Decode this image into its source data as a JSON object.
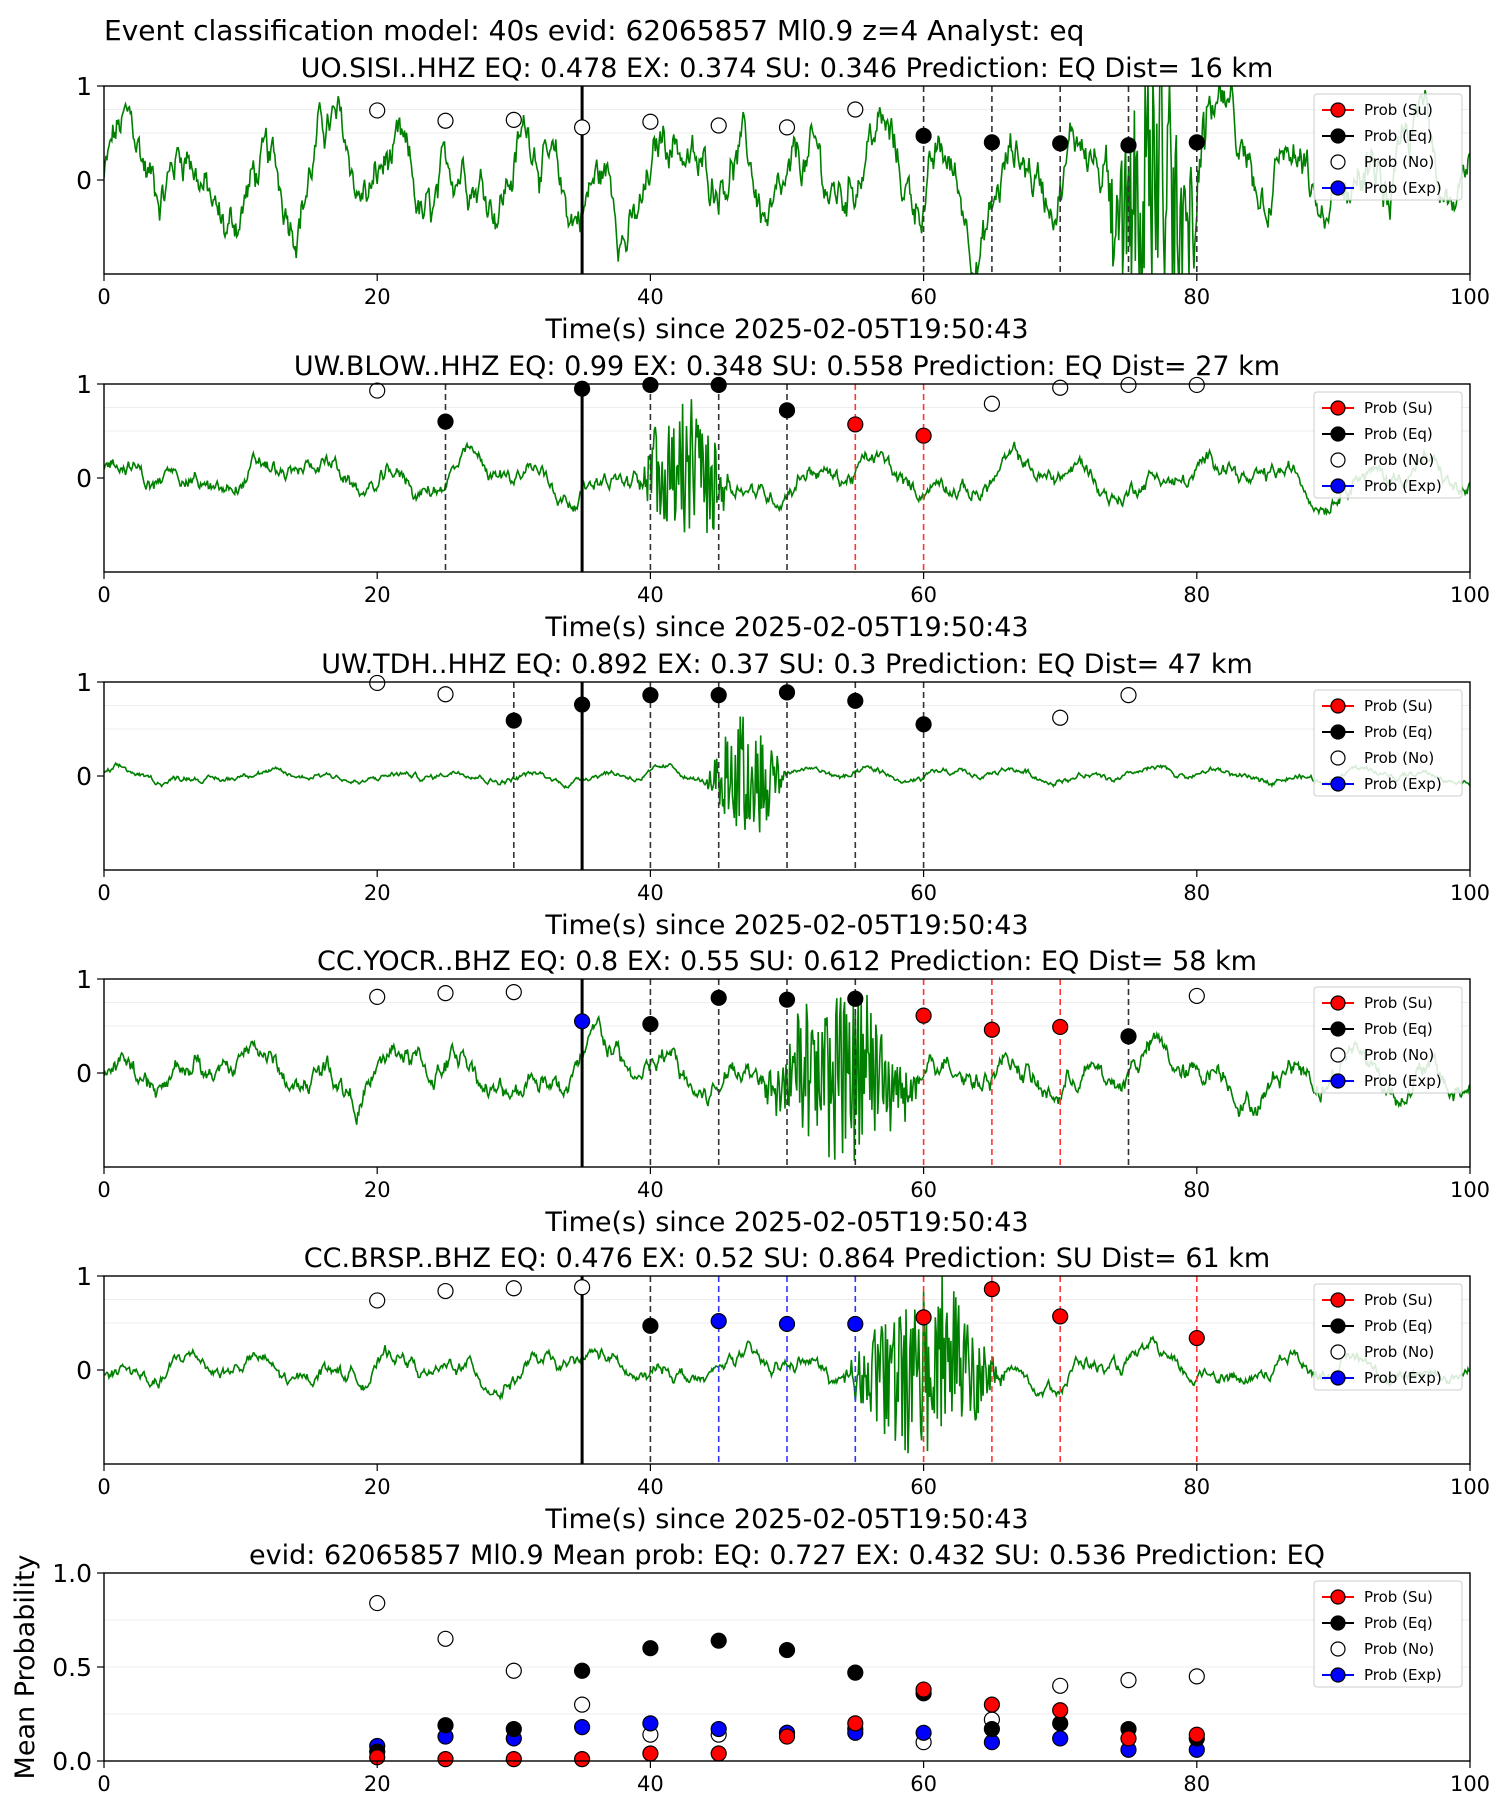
{
  "figure": {
    "suptitle": "Event classification model: 40s evid: 62065857 Ml0.9 z=4 Analyst: eq"
  },
  "legend_labels": [
    "Prob (Su)",
    "Prob (Eq)",
    "Prob (No)",
    "Prob (Exp)"
  ],
  "colors": {
    "su": "#ff0000",
    "eq": "#000000",
    "no": "#ffffff",
    "exp": "#0000ff",
    "trace": "#008000"
  },
  "chart_data": [
    {
      "type": "line",
      "title": "UO.SISI..HHZ   EQ: 0.478  EX: 0.374  SU: 0.346   Prediction: EQ    Dist= 16 km",
      "xlabel": "Time(s) since 2025-02-05T19:50:43",
      "xlim": [
        0,
        100
      ],
      "ylim": [
        -1,
        1
      ],
      "xticks": [
        "0",
        "20",
        "40",
        "60",
        "80",
        "100"
      ],
      "yticks": [
        "0",
        "1"
      ],
      "amp": 0.62,
      "burst": [
        73,
        81,
        1.6
      ],
      "origin_line": 35,
      "vlines": [
        {
          "x": 60,
          "c": "k"
        },
        {
          "x": 65,
          "c": "k"
        },
        {
          "x": 70,
          "c": "k"
        },
        {
          "x": 75,
          "c": "k"
        },
        {
          "x": 80,
          "c": "k"
        }
      ],
      "markers": [
        {
          "x": 20,
          "y": 0.74,
          "c": "no"
        },
        {
          "x": 25,
          "y": 0.63,
          "c": "no"
        },
        {
          "x": 30,
          "y": 0.64,
          "c": "no"
        },
        {
          "x": 35,
          "y": 0.56,
          "c": "no"
        },
        {
          "x": 40,
          "y": 0.62,
          "c": "no"
        },
        {
          "x": 45,
          "y": 0.58,
          "c": "no"
        },
        {
          "x": 50,
          "y": 0.56,
          "c": "no"
        },
        {
          "x": 55,
          "y": 0.75,
          "c": "no"
        },
        {
          "x": 60,
          "y": 0.47,
          "c": "eq"
        },
        {
          "x": 65,
          "y": 0.4,
          "c": "eq"
        },
        {
          "x": 70,
          "y": 0.39,
          "c": "eq"
        },
        {
          "x": 75,
          "y": 0.37,
          "c": "eq"
        },
        {
          "x": 80,
          "y": 0.4,
          "c": "eq"
        }
      ]
    },
    {
      "type": "line",
      "title": "UW.BLOW..HHZ   EQ: 0.99  EX: 0.348  SU: 0.558   Prediction: EQ    Dist= 27 km",
      "xlabel": "Time(s) since 2025-02-05T19:50:43",
      "xlim": [
        0,
        100
      ],
      "ylim": [
        -1,
        1
      ],
      "xticks": [
        "0",
        "20",
        "40",
        "60",
        "80",
        "100"
      ],
      "yticks": [
        "0",
        "1"
      ],
      "amp": 0.22,
      "burst": [
        39,
        46,
        0.9
      ],
      "origin_line": 35,
      "vlines": [
        {
          "x": 25,
          "c": "k"
        },
        {
          "x": 40,
          "c": "k"
        },
        {
          "x": 45,
          "c": "k"
        },
        {
          "x": 50,
          "c": "k"
        },
        {
          "x": 55,
          "c": "r"
        },
        {
          "x": 60,
          "c": "r"
        }
      ],
      "markers": [
        {
          "x": 20,
          "y": 0.93,
          "c": "no"
        },
        {
          "x": 25,
          "y": 0.6,
          "c": "eq"
        },
        {
          "x": 35,
          "y": 0.95,
          "c": "eq"
        },
        {
          "x": 40,
          "y": 0.99,
          "c": "eq"
        },
        {
          "x": 45,
          "y": 0.99,
          "c": "eq"
        },
        {
          "x": 50,
          "y": 0.72,
          "c": "eq"
        },
        {
          "x": 55,
          "y": 0.57,
          "c": "su"
        },
        {
          "x": 60,
          "y": 0.45,
          "c": "su"
        },
        {
          "x": 65,
          "y": 0.79,
          "c": "no"
        },
        {
          "x": 70,
          "y": 0.96,
          "c": "no"
        },
        {
          "x": 75,
          "y": 0.99,
          "c": "no"
        },
        {
          "x": 80,
          "y": 0.99,
          "c": "no"
        }
      ]
    },
    {
      "type": "line",
      "title": "UW.TDH..HHZ   EQ: 0.892  EX: 0.37   SU: 0.3   Prediction: EQ    Dist= 47 km",
      "xlabel": "Time(s) since 2025-02-05T19:50:43",
      "xlim": [
        0,
        100
      ],
      "ylim": [
        -1,
        1
      ],
      "xticks": [
        "0",
        "20",
        "40",
        "60",
        "80",
        "100"
      ],
      "yticks": [
        "0",
        "1"
      ],
      "amp": 0.08,
      "burst": [
        44,
        50,
        0.75
      ],
      "origin_line": 35,
      "vlines": [
        {
          "x": 30,
          "c": "k"
        },
        {
          "x": 40,
          "c": "k"
        },
        {
          "x": 45,
          "c": "k"
        },
        {
          "x": 50,
          "c": "k"
        },
        {
          "x": 55,
          "c": "k"
        },
        {
          "x": 60,
          "c": "k"
        }
      ],
      "markers": [
        {
          "x": 20,
          "y": 0.99,
          "c": "no"
        },
        {
          "x": 25,
          "y": 0.87,
          "c": "no"
        },
        {
          "x": 30,
          "y": 0.59,
          "c": "eq"
        },
        {
          "x": 35,
          "y": 0.76,
          "c": "eq"
        },
        {
          "x": 40,
          "y": 0.86,
          "c": "eq"
        },
        {
          "x": 45,
          "y": 0.86,
          "c": "eq"
        },
        {
          "x": 50,
          "y": 0.89,
          "c": "eq"
        },
        {
          "x": 55,
          "y": 0.8,
          "c": "eq"
        },
        {
          "x": 60,
          "y": 0.55,
          "c": "eq"
        },
        {
          "x": 70,
          "y": 0.62,
          "c": "no"
        },
        {
          "x": 75,
          "y": 0.86,
          "c": "no"
        }
      ]
    },
    {
      "type": "line",
      "title": "CC.YOCR..BHZ   EQ: 0.8  EX: 0.55  SU: 0.612   Prediction: EQ    Dist= 58 km",
      "xlabel": "Time(s) since 2025-02-05T19:50:43",
      "xlim": [
        0,
        100
      ],
      "ylim": [
        -1,
        1
      ],
      "xticks": [
        "0",
        "20",
        "40",
        "60",
        "80",
        "100"
      ],
      "yticks": [
        "0",
        "1"
      ],
      "amp": 0.3,
      "burst": [
        48,
        60,
        1.0
      ],
      "origin_line": 35,
      "vlines": [
        {
          "x": 40,
          "c": "k"
        },
        {
          "x": 45,
          "c": "k"
        },
        {
          "x": 50,
          "c": "k"
        },
        {
          "x": 55,
          "c": "k"
        },
        {
          "x": 60,
          "c": "r"
        },
        {
          "x": 65,
          "c": "r"
        },
        {
          "x": 70,
          "c": "r"
        },
        {
          "x": 75,
          "c": "k"
        }
      ],
      "markers": [
        {
          "x": 20,
          "y": 0.81,
          "c": "no"
        },
        {
          "x": 25,
          "y": 0.85,
          "c": "no"
        },
        {
          "x": 30,
          "y": 0.86,
          "c": "no"
        },
        {
          "x": 35,
          "y": 0.55,
          "c": "exp"
        },
        {
          "x": 40,
          "y": 0.52,
          "c": "eq"
        },
        {
          "x": 45,
          "y": 0.8,
          "c": "eq"
        },
        {
          "x": 50,
          "y": 0.78,
          "c": "eq"
        },
        {
          "x": 55,
          "y": 0.79,
          "c": "eq"
        },
        {
          "x": 60,
          "y": 0.61,
          "c": "su"
        },
        {
          "x": 65,
          "y": 0.46,
          "c": "su"
        },
        {
          "x": 70,
          "y": 0.49,
          "c": "su"
        },
        {
          "x": 75,
          "y": 0.39,
          "c": "eq"
        },
        {
          "x": 80,
          "y": 0.82,
          "c": "no"
        }
      ]
    },
    {
      "type": "line",
      "title": "CC.BRSP..BHZ   EQ: 0.476  EX: 0.52   SU: 0.864   Prediction: SU    Dist= 61 km",
      "xlabel": "Time(s) since 2025-02-05T19:50:43",
      "xlim": [
        0,
        100
      ],
      "ylim": [
        -1,
        1
      ],
      "xticks": [
        "0",
        "20",
        "40",
        "60",
        "80",
        "100"
      ],
      "yticks": [
        "0",
        "1"
      ],
      "amp": 0.18,
      "burst": [
        54,
        66,
        0.95
      ],
      "origin_line": 35,
      "vlines": [
        {
          "x": 40,
          "c": "k"
        },
        {
          "x": 45,
          "c": "b"
        },
        {
          "x": 50,
          "c": "b"
        },
        {
          "x": 55,
          "c": "b"
        },
        {
          "x": 60,
          "c": "r"
        },
        {
          "x": 65,
          "c": "r"
        },
        {
          "x": 70,
          "c": "r"
        },
        {
          "x": 80,
          "c": "r"
        }
      ],
      "markers": [
        {
          "x": 20,
          "y": 0.74,
          "c": "no"
        },
        {
          "x": 25,
          "y": 0.84,
          "c": "no"
        },
        {
          "x": 30,
          "y": 0.87,
          "c": "no"
        },
        {
          "x": 35,
          "y": 0.88,
          "c": "no"
        },
        {
          "x": 40,
          "y": 0.47,
          "c": "eq"
        },
        {
          "x": 45,
          "y": 0.52,
          "c": "exp"
        },
        {
          "x": 50,
          "y": 0.49,
          "c": "exp"
        },
        {
          "x": 55,
          "y": 0.49,
          "c": "exp"
        },
        {
          "x": 60,
          "y": 0.56,
          "c": "su"
        },
        {
          "x": 65,
          "y": 0.86,
          "c": "su"
        },
        {
          "x": 70,
          "y": 0.57,
          "c": "su"
        },
        {
          "x": 80,
          "y": 0.34,
          "c": "su"
        }
      ]
    },
    {
      "type": "scatter",
      "title": "evid: 62065857   Ml0.9   Mean prob:   EQ: 0.727   EX: 0.432   SU: 0.536   Prediction: EQ",
      "ylabel": "Mean Probability",
      "xlim": [
        0,
        100
      ],
      "ylim": [
        0,
        1
      ],
      "xticks": [
        "0",
        "20",
        "40",
        "60",
        "80",
        "100"
      ],
      "yticks": [
        "0.0",
        "0.5",
        "1.0"
      ],
      "x": [
        20,
        25,
        30,
        35,
        40,
        45,
        50,
        55,
        60,
        65,
        70,
        75,
        80
      ],
      "series": [
        {
          "key": "no",
          "values": [
            0.84,
            0.65,
            0.48,
            0.3,
            0.14,
            0.14,
            0.15,
            0.17,
            0.1,
            0.22,
            0.4,
            0.43,
            0.45
          ]
        },
        {
          "key": "exp",
          "values": [
            0.08,
            0.13,
            0.12,
            0.18,
            0.2,
            0.17,
            0.15,
            0.15,
            0.15,
            0.1,
            0.12,
            0.06,
            0.06
          ]
        },
        {
          "key": "eq",
          "values": [
            0.05,
            0.19,
            0.17,
            0.48,
            0.6,
            0.64,
            0.59,
            0.47,
            0.36,
            0.17,
            0.2,
            0.17,
            0.12
          ]
        },
        {
          "key": "su",
          "values": [
            0.02,
            0.01,
            0.01,
            0.01,
            0.04,
            0.04,
            0.13,
            0.2,
            0.38,
            0.3,
            0.27,
            0.12,
            0.14
          ]
        }
      ]
    }
  ]
}
